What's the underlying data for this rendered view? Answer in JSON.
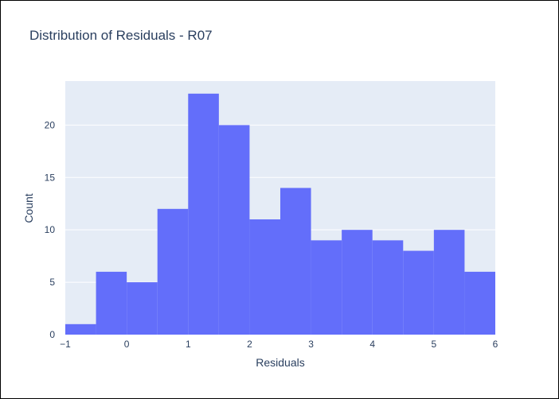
{
  "chart_data": {
    "type": "bar",
    "title": "Distribution of Residuals - R07",
    "xlabel": "Residuals",
    "ylabel": "Count",
    "bin_edges": [
      -1,
      -0.5,
      0,
      0.5,
      1,
      1.5,
      2,
      2.5,
      3,
      3.5,
      4,
      4.5,
      5,
      5.5,
      6
    ],
    "values": [
      1,
      6,
      5,
      12,
      23,
      20,
      11,
      14,
      9,
      10,
      9,
      8,
      10,
      6
    ],
    "xlim": [
      -1,
      6
    ],
    "ylim": [
      0,
      24.2
    ],
    "x_ticks": [
      -1,
      0,
      1,
      2,
      3,
      4,
      5,
      6
    ],
    "x_tick_labels": [
      "−1",
      "0",
      "1",
      "2",
      "3",
      "4",
      "5",
      "6"
    ],
    "y_ticks": [
      0,
      5,
      10,
      15,
      20
    ],
    "y_tick_labels": [
      "0",
      "5",
      "10",
      "15",
      "20"
    ],
    "grid": true,
    "legend": "none",
    "colors": {
      "bar": "#636efa",
      "plot_bg": "#e5ecf6",
      "grid": "#ffffff",
      "text": "#2a3f5f"
    }
  }
}
